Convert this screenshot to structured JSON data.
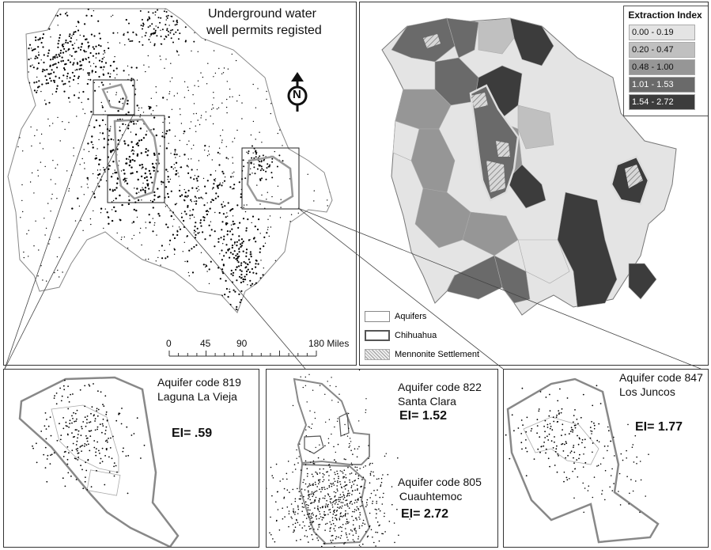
{
  "main_map": {
    "title_line1": "Underground water",
    "title_line2": "well permits registed",
    "north_letter": "N",
    "scale_ticks": [
      "0",
      "45",
      "90",
      "180 Miles"
    ]
  },
  "index_map": {
    "legend_title": "Extraction Index",
    "classes": [
      {
        "label": "0.00 - 0.19",
        "color": "#e4e4e4"
      },
      {
        "label": "0.20 - 0.47",
        "color": "#c0c0c0"
      },
      {
        "label": "0.48 - 1.00",
        "color": "#969696"
      },
      {
        "label": "1.01 - 1.53",
        "color": "#6a6a6a"
      },
      {
        "label": "1.54 - 2.72",
        "color": "#3c3c3c"
      }
    ],
    "layers": [
      {
        "label": "Aquifers",
        "symbol": "thin-outline"
      },
      {
        "label": "Chihuahua",
        "symbol": "thick-outline"
      },
      {
        "label": "Mennonite Settlement",
        "symbol": "hatch"
      }
    ]
  },
  "insets": [
    {
      "code_line": "Aquifer code 819",
      "name": "Laguna La Vieja",
      "ei": "EI= .59"
    },
    {
      "code_line": "Aquifer code 822",
      "name": "Santa Clara",
      "ei": "EI= 1.52"
    },
    {
      "code_line": "Aquifer code 805",
      "name": "Cuauhtemoc",
      "ei": "EI= 2.72"
    },
    {
      "code_line": "Aquifer code 847",
      "name": "Los Juncos",
      "ei": "EI= 1.77"
    }
  ]
}
